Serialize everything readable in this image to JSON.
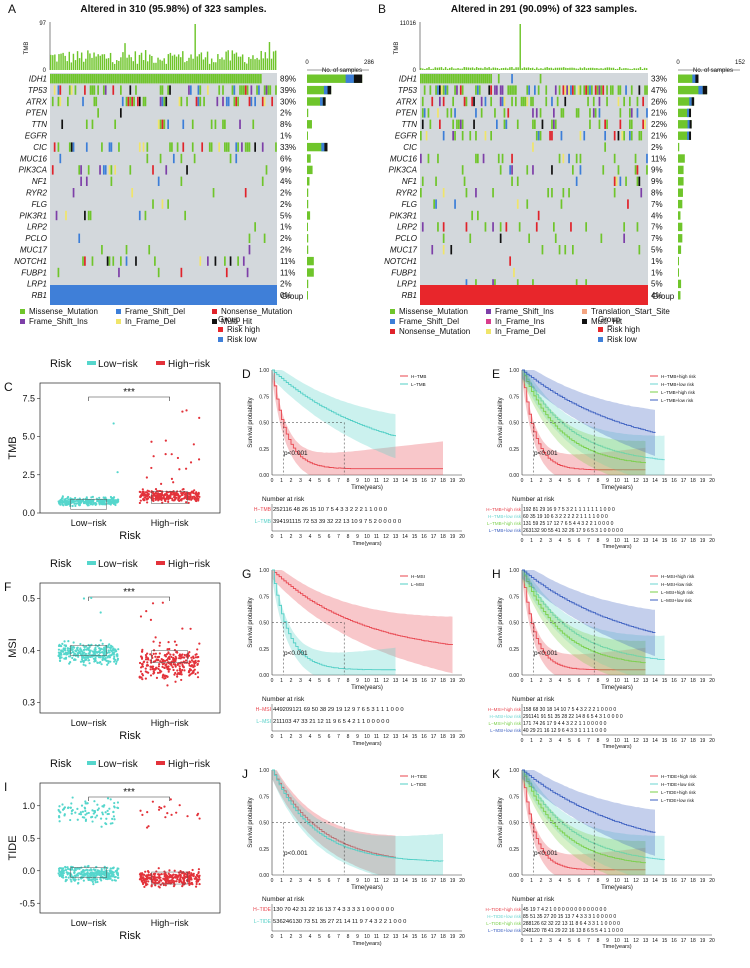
{
  "figure": {
    "panel_letters": [
      "A",
      "B",
      "C",
      "D",
      "E",
      "F",
      "G",
      "H",
      "I",
      "J",
      "K"
    ],
    "colors": {
      "missense": "#6fc52b",
      "frame_shift_del": "#3c7ed8",
      "frame_shift_ins": "#7d3fa8",
      "nonsense": "#e0232b",
      "in_frame_del": "#f0e56a",
      "in_frame_ins": "#d83d8c",
      "translation_start": "#f4a582",
      "multi_hit": "#111111",
      "grid": "#d3d8dc",
      "risk_high": "#e8262b",
      "risk_low": "#3f7fd8",
      "low_risk_teal": "#55d6cc",
      "high_risk_red": "#e3323a"
    }
  },
  "oncoA": {
    "title": "Altered in 310 (95.98%) of 323 samples.",
    "tmb_axis_label": "TMB",
    "tmb_max": "97",
    "tmb_min": "0",
    "samples_label": "No. of samples",
    "samples_min": "0",
    "samples_max": "286",
    "group_label": "Group",
    "genes": [
      "IDH1",
      "TP53",
      "ATRX",
      "PTEN",
      "TTN",
      "EGFR",
      "CIC",
      "MUC16",
      "PIK3CA",
      "NF1",
      "RYR2",
      "FLG",
      "PIK3R1",
      "LRP2",
      "PCLO",
      "MUC17",
      "NOTCH1",
      "FUBP1",
      "LRP1",
      "RB1"
    ],
    "pcts": [
      "89%",
      "39%",
      "30%",
      "2%",
      "8%",
      "1%",
      "33%",
      "6%",
      "9%",
      "4%",
      "2%",
      "2%",
      "5%",
      "1%",
      "2%",
      "2%",
      "11%",
      "11%",
      "2%",
      "0%"
    ],
    "legend": [
      "Missense_Mutation",
      "Frame_Shift_Ins",
      "Frame_Shift_Del",
      "In_Frame_Del",
      "Nonsense_Mutation",
      "Multi_Hit"
    ],
    "group_title": "Group",
    "group_items": [
      "Risk high",
      "Risk low"
    ]
  },
  "oncoB": {
    "title": "Altered in 291 (90.09%) of 323 samples.",
    "tmb_axis_label": "TMB",
    "tmb_max": "11016",
    "tmb_min": "0",
    "samples_label": "No. of samples",
    "samples_min": "0",
    "samples_max": "152",
    "group_label": "Group",
    "genes": [
      "IDH1",
      "TP53",
      "ATRX",
      "PTEN",
      "TTN",
      "EGFR",
      "CIC",
      "MUC16",
      "PIK3CA",
      "NF1",
      "RYR2",
      "FLG",
      "PIK3R1",
      "LRP2",
      "PCLO",
      "MUC17",
      "NOTCH1",
      "FUBP1",
      "LRP1",
      "RB1"
    ],
    "pcts": [
      "33%",
      "47%",
      "26%",
      "21%",
      "22%",
      "21%",
      "2%",
      "11%",
      "9%",
      "9%",
      "8%",
      "7%",
      "4%",
      "7%",
      "7%",
      "5%",
      "1%",
      "1%",
      "5%",
      "4%"
    ],
    "legend": [
      "Missense_Mutation",
      "Frame_Shift_Del",
      "Nonsense_Mutation",
      "Frame_Shift_Ins",
      "In_Frame_Ins",
      "In_Frame_Del",
      "Translation_Start_Site",
      "Multi_Hit"
    ],
    "group_title": "Group",
    "group_items": [
      "Risk high",
      "Risk low"
    ]
  },
  "scatter": [
    {
      "letter": "C",
      "ylabel": "TMB",
      "ticks": [
        "0.0",
        "2.5",
        "5.0",
        "7.5"
      ],
      "ymin": 0,
      "ymax": 8.5,
      "tickvals": [
        0,
        2.5,
        5,
        7.5
      ]
    },
    {
      "letter": "F",
      "ylabel": "MSI",
      "ticks": [
        "0.3",
        "0.4",
        "0.5"
      ],
      "ymin": 0.28,
      "ymax": 0.53,
      "tickvals": [
        0.3,
        0.4,
        0.5
      ]
    },
    {
      "letter": "I",
      "ylabel": "TIDE",
      "ticks": [
        "-0.5",
        "0.0",
        "0.5",
        "1.0"
      ],
      "ymin": -0.65,
      "ymax": 1.35,
      "tickvals": [
        -0.5,
        0,
        0.5,
        1.0
      ]
    }
  ],
  "scatter_common": {
    "legend_title": "Risk",
    "low": "Low−risk",
    "high": "High−risk",
    "xlabel": "Risk",
    "signif": "***"
  },
  "km_common": {
    "ylabel": "Survival probability",
    "xlabel": "Time(years)",
    "yticks": [
      "0.00",
      "0.25",
      "0.50",
      "0.75",
      "1.00"
    ],
    "xticks": [
      "0",
      "1",
      "2",
      "3",
      "4",
      "5",
      "6",
      "7",
      "8",
      "9",
      "10",
      "11",
      "12",
      "13",
      "14",
      "15",
      "16",
      "17",
      "18",
      "19",
      "20"
    ],
    "pval": "p<0.001",
    "risk_title": "Number at risk"
  },
  "km": [
    {
      "letter": "D",
      "legend": [
        "H−TMB",
        "L−TMB"
      ],
      "risk_labels": [
        "H−TMB",
        "L−TMB"
      ],
      "risk_rows": [
        "252116 48 26 15 10 7 5 4 3 3 2 2 2 1 1 0 0 0",
        "394191115 72 53 39 32 22 13 10 9 7 5 2 0 0 0 0 0"
      ]
    },
    {
      "letter": "E",
      "legend": [
        "H−TMB+high risk",
        "H−TMB+low risk",
        "L−TMB+high risk",
        "L−TMB+low risk"
      ],
      "risk_labels": [
        "H−TMB+high risk",
        "H−TMB+low risk",
        "L−TMB+high risk",
        "L−TMB+low risk"
      ],
      "risk_rows": [
        "192 81 29 16 9 7 5 3 2 1 1 1 1 1 1 1 0 0 0",
        "60 35 19 10 6 3 2 2 2 2 2 1 1 1 1 0 0 0",
        "131 59 25 17 12 7 6 5 4 4 3 2 2 1 0 0 0 0",
        "263132 90 55 41 32 26 17 9 6 5 3 1 0 0 0 0 0"
      ]
    },
    {
      "letter": "G",
      "legend": [
        "H−MSI",
        "L−MSI"
      ],
      "risk_labels": [
        "H−MSI",
        "L−MSI"
      ],
      "risk_rows": [
        "449209121 69 50 38 29 19 12 9 7 6 5 3 1 1 1 0 0 0",
        "211103 47 33 21 12 11 9 6 5 4 2 1 1 0 0 0 0 0"
      ]
    },
    {
      "letter": "H",
      "legend": [
        "H−MSI+high risk",
        "H−MSI+low risk",
        "L−MSI+high risk",
        "L−MSI+low risk"
      ],
      "risk_labels": [
        "H−MSI+high risk",
        "H−MSI+low risk",
        "L−MSI+high risk",
        "L−MSI+low risk"
      ],
      "risk_rows": [
        "158 68 30 18 14 10 7 5 4 3 2 2 2 1 0 0 0 0",
        "291141 91 51 35 28 22 14 8 6 5 4 3 1 0 0 0 0",
        "171 74 26 17 9 4 4 3 2 2 1 1 0 0 0 0 0",
        "40 29 21 16 12 9 6 4 3 3 1 1 1 1 0 0 0"
      ]
    },
    {
      "letter": "J",
      "legend": [
        "H−TIDE",
        "L−TIDE"
      ],
      "risk_labels": [
        "H−TIDE",
        "L−TIDE"
      ],
      "risk_rows": [
        "130 70 42 31 22 16 13 7 4 3 3 3 3 1 0 0 0 0 0 0",
        "536246130 73 51 35 27 21 14 11 9 7 4 3 2 2 1 0 0 0"
      ]
    },
    {
      "letter": "K",
      "legend": [
        "H−TIDE+high risk",
        "H−TIDE+low risk",
        "L−TIDE+high risk",
        "L−TIDE+low risk"
      ],
      "risk_labels": [
        "H−TIDE+high risk",
        "H−TIDE+low risk",
        "L−TIDE+high risk",
        "L−TIDE+low risk"
      ],
      "risk_rows": [
        "45 19 7 4 2 1 0 0 0 0 0 0 0 0 0 0 0 0 0",
        "85 51 35 27 20 15 13 7 4 3 3 3 1 0 0 0 0 0",
        "288126 62 32 22 13 11 8 6 4 3 3 1 1 0 0 0 0",
        "248120 78 41 29 22 16 13 8 6 5 5 4 1 1 0 0 0"
      ]
    }
  ]
}
